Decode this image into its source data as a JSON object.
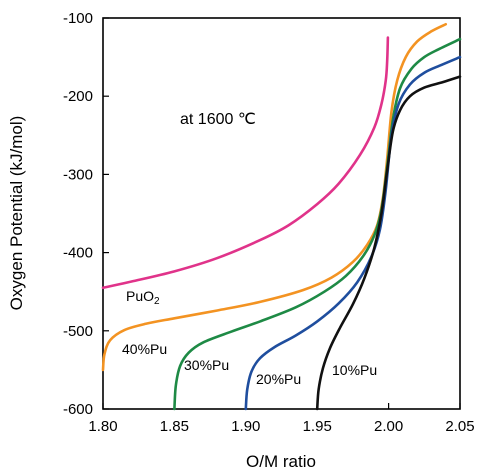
{
  "chart_data": {
    "type": "line",
    "title": "",
    "xlabel": "O/M ratio",
    "ylabel": "Oxygen Potential (kJ/mol)",
    "xlim": [
      1.8,
      2.05
    ],
    "ylim": [
      -600,
      -100
    ],
    "x_ticks": [
      1.8,
      1.85,
      1.9,
      1.95,
      2.0,
      2.05
    ],
    "x_tick_labels": [
      "1.80",
      "1.85",
      "1.90",
      "1.95",
      "2.00",
      "2.05"
    ],
    "y_ticks": [
      -600,
      -500,
      -400,
      -300,
      -200,
      -100
    ],
    "y_tick_labels": [
      "-600",
      "-500",
      "-400",
      "-300",
      "-200",
      "-100"
    ],
    "grid": false,
    "annotation": "at 1600 ℃",
    "series": [
      {
        "name": "PuO₂",
        "label_main": "PuO",
        "label_sub": "2",
        "color": "#e0338a",
        "x": [
          1.8,
          1.82,
          1.85,
          1.88,
          1.91,
          1.93,
          1.95,
          1.965,
          1.98,
          1.99,
          1.995,
          1.998,
          1.999,
          1.9995
        ],
        "y": [
          -445,
          -437,
          -424,
          -407,
          -384,
          -365,
          -338,
          -312,
          -275,
          -240,
          -210,
          -180,
          -155,
          -125
        ]
      },
      {
        "name": "40%Pu",
        "color": "#f39322",
        "x": [
          1.8,
          1.801,
          1.805,
          1.815,
          1.83,
          1.85,
          1.88,
          1.91,
          1.94,
          1.96,
          1.975,
          1.985,
          1.992,
          1.996,
          1.999,
          2.002,
          2.006,
          2.012,
          2.02,
          2.03,
          2.04
        ],
        "y": [
          -550,
          -530,
          -512,
          -499,
          -491,
          -484,
          -474,
          -463,
          -448,
          -432,
          -412,
          -390,
          -365,
          -330,
          -280,
          -220,
          -180,
          -150,
          -130,
          -117,
          -108
        ]
      },
      {
        "name": "30%Pu",
        "color": "#1e8a45",
        "x": [
          1.85,
          1.851,
          1.854,
          1.86,
          1.87,
          1.89,
          1.91,
          1.935,
          1.955,
          1.97,
          1.982,
          1.99,
          1.995,
          1.999,
          2.003,
          2.008,
          2.016,
          2.025,
          2.035,
          2.05
        ],
        "y": [
          -600,
          -570,
          -545,
          -528,
          -515,
          -501,
          -488,
          -470,
          -450,
          -430,
          -405,
          -378,
          -345,
          -290,
          -230,
          -190,
          -165,
          -150,
          -140,
          -127
        ]
      },
      {
        "name": "20%Pu",
        "color": "#1f4e9e",
        "x": [
          1.9,
          1.901,
          1.904,
          1.91,
          1.92,
          1.935,
          1.95,
          1.965,
          1.978,
          1.988,
          1.994,
          1.998,
          2.002,
          2.007,
          2.015,
          2.025,
          2.037,
          2.05
        ],
        "y": [
          -600,
          -575,
          -552,
          -535,
          -521,
          -506,
          -488,
          -465,
          -438,
          -405,
          -370,
          -320,
          -250,
          -210,
          -185,
          -170,
          -160,
          -150
        ]
      },
      {
        "name": "10%Pu",
        "color": "#111111",
        "x": [
          1.95,
          1.951,
          1.954,
          1.959,
          1.966,
          1.975,
          1.983,
          1.99,
          1.995,
          1.999,
          2.003,
          2.008,
          2.015,
          2.025,
          2.038,
          2.05
        ],
        "y": [
          -600,
          -575,
          -548,
          -522,
          -496,
          -466,
          -433,
          -394,
          -350,
          -295,
          -245,
          -218,
          -200,
          -189,
          -182,
          -175
        ]
      }
    ]
  }
}
